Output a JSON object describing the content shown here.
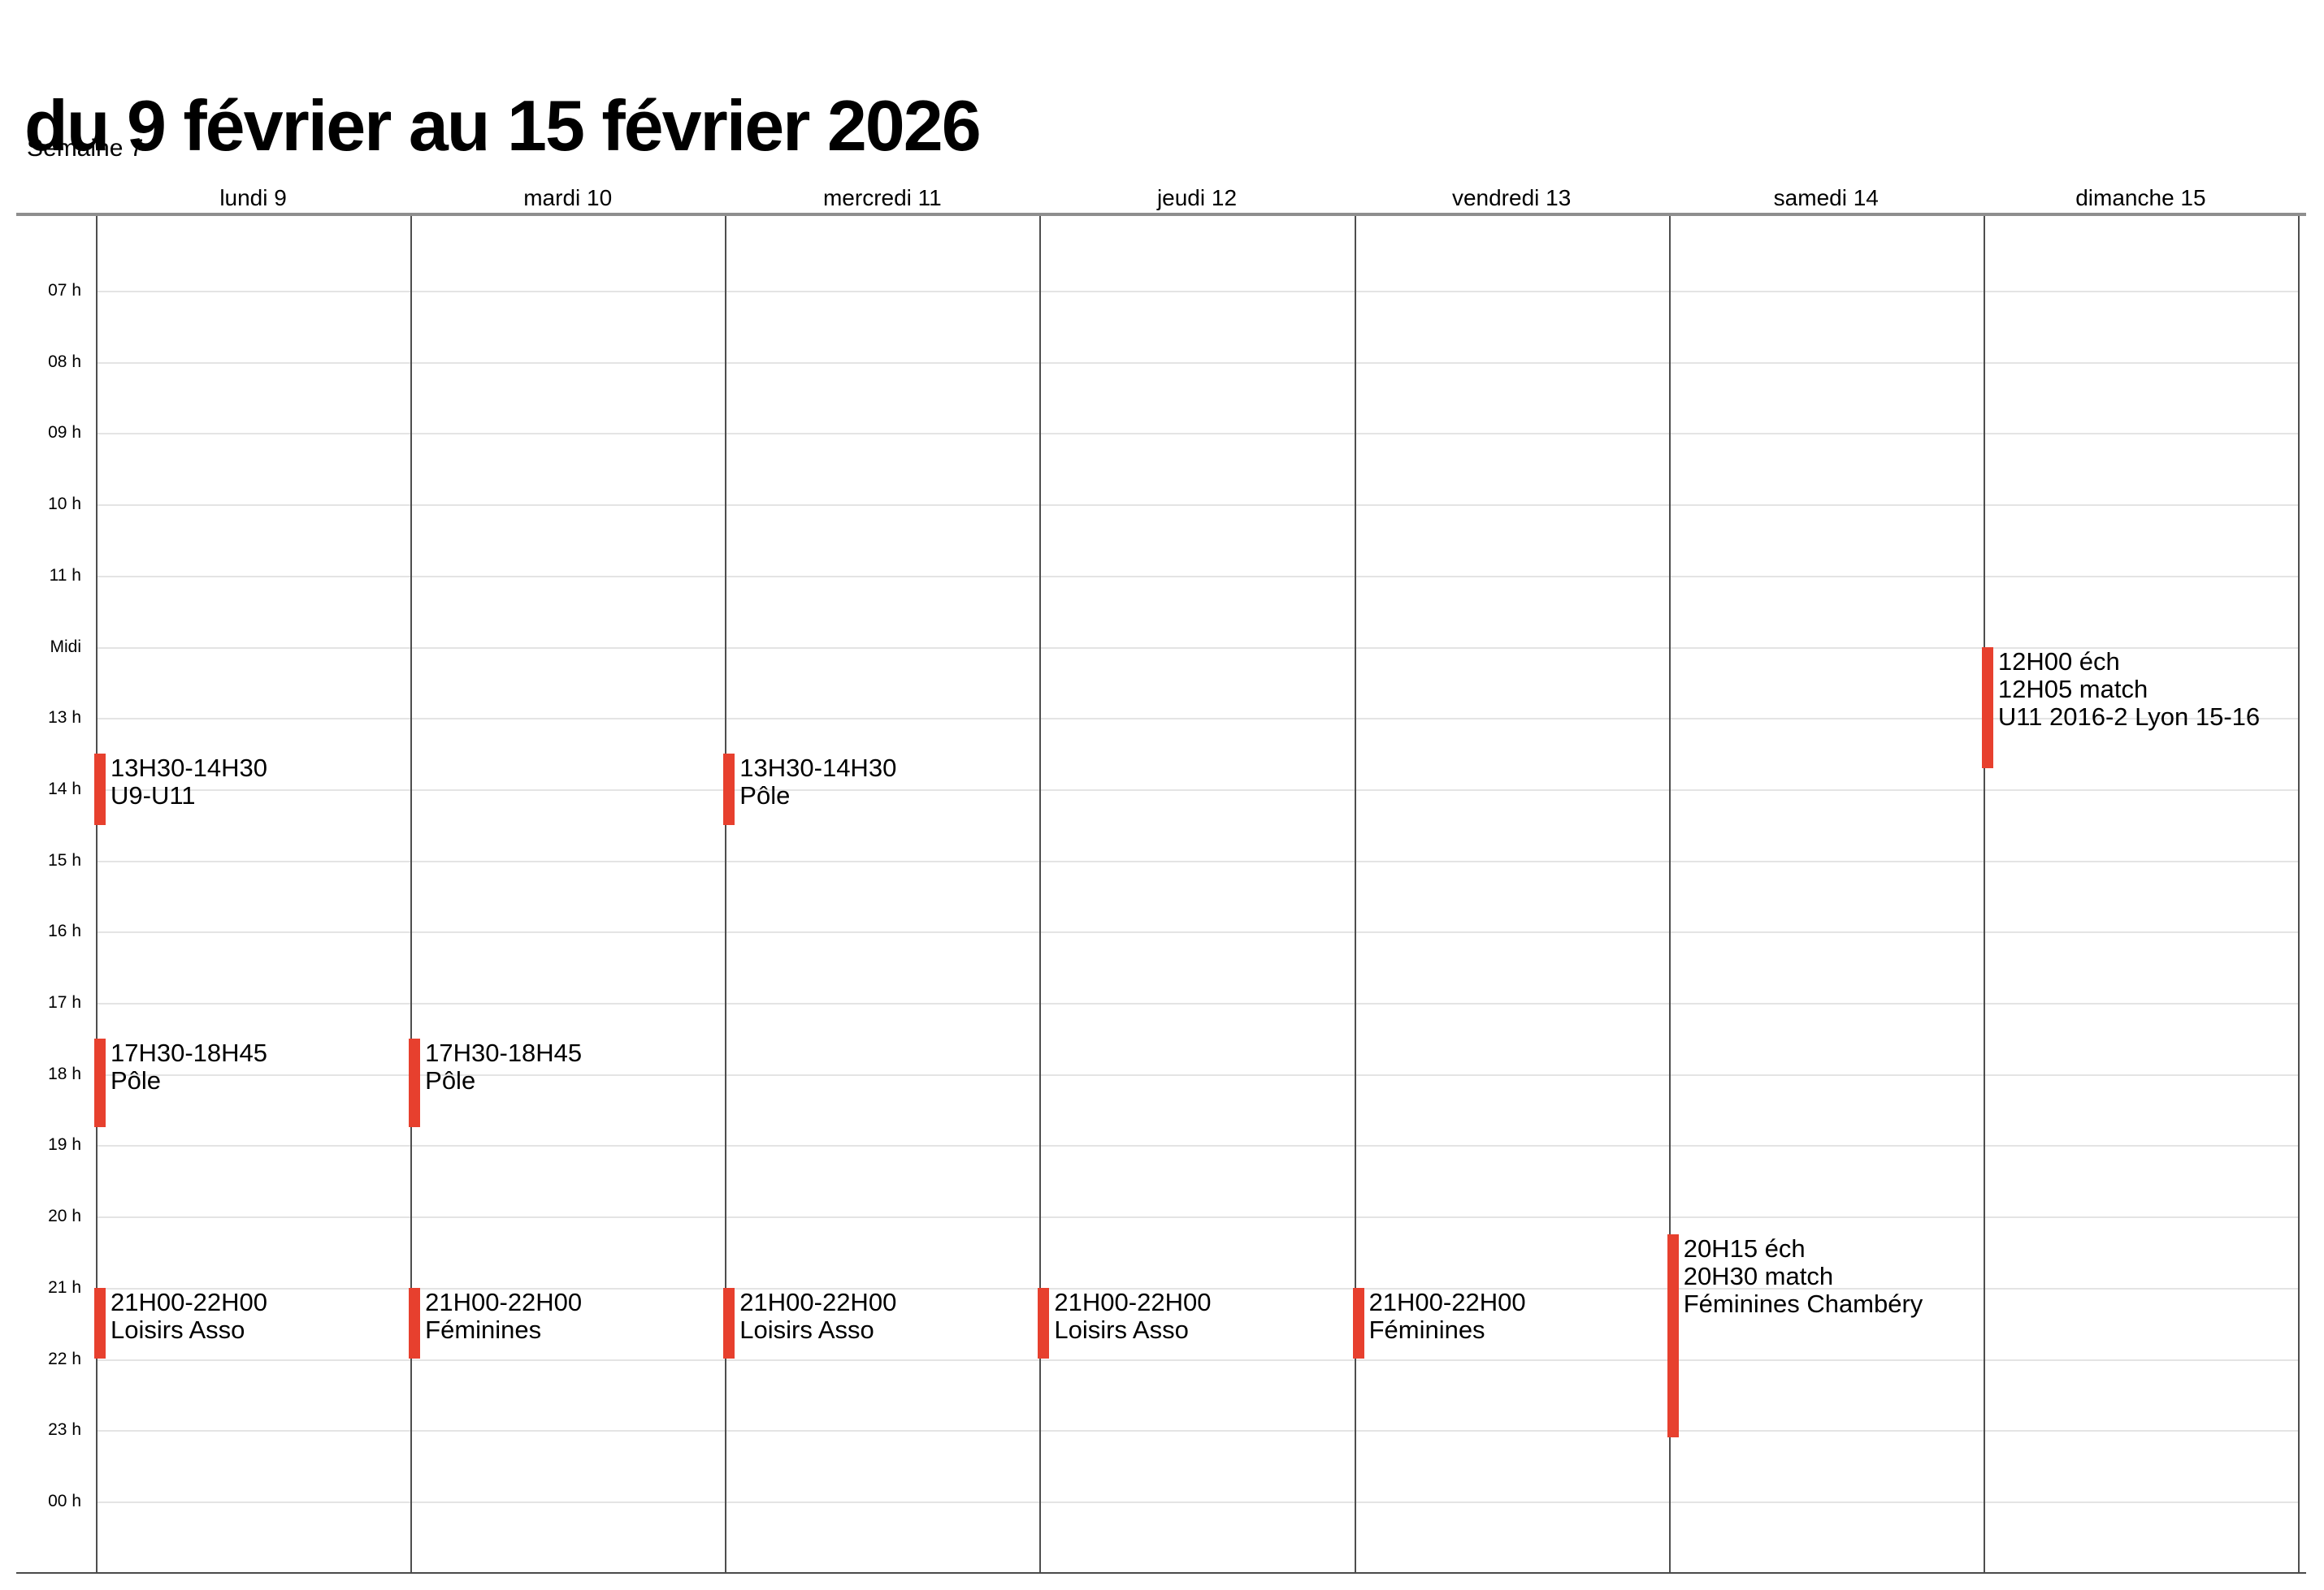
{
  "page": {
    "title": "du 9 février au 15 février 2026",
    "subtitle": "Semaine 7"
  },
  "calendar": {
    "accent_color": "#e7402e",
    "time_labels": [
      "07 h",
      "08 h",
      "09 h",
      "10 h",
      "11 h",
      "Midi",
      "13 h",
      "14 h",
      "15 h",
      "16 h",
      "17 h",
      "18 h",
      "19 h",
      "20 h",
      "21 h",
      "22 h",
      "23 h",
      "00 h"
    ],
    "days": [
      {
        "label": "lundi 9",
        "events": [
          {
            "start": 13.5,
            "end": 14.5,
            "lines": [
              "13H30-14H30",
              "U9-U11"
            ]
          },
          {
            "start": 17.5,
            "end": 18.75,
            "lines": [
              "17H30-18H45",
              "Pôle"
            ]
          },
          {
            "start": 21,
            "end": 22,
            "lines": [
              "21H00-22H00",
              "Loisirs Asso"
            ]
          }
        ]
      },
      {
        "label": "mardi 10",
        "events": [
          {
            "start": 17.5,
            "end": 18.75,
            "lines": [
              "17H30-18H45",
              "Pôle"
            ]
          },
          {
            "start": 21,
            "end": 22,
            "lines": [
              "21H00-22H00",
              "Féminines"
            ]
          }
        ]
      },
      {
        "label": "mercredi 11",
        "events": [
          {
            "start": 13.5,
            "end": 14.5,
            "lines": [
              "13H30-14H30",
              "Pôle"
            ]
          },
          {
            "start": 21,
            "end": 22,
            "lines": [
              "21H00-22H00",
              "Loisirs Asso"
            ]
          }
        ]
      },
      {
        "label": "jeudi 12",
        "events": [
          {
            "start": 21,
            "end": 22,
            "lines": [
              "21H00-22H00",
              "Loisirs Asso"
            ]
          }
        ]
      },
      {
        "label": "vendredi 13",
        "events": [
          {
            "start": 21,
            "end": 22,
            "lines": [
              "21H00-22H00",
              "Féminines"
            ]
          }
        ]
      },
      {
        "label": "samedi 14",
        "events": [
          {
            "start": 20.25,
            "end": 23.1,
            "lines": [
              "20H15 éch",
              "20H30 match",
              "Féminines Chambéry"
            ]
          }
        ]
      },
      {
        "label": "dimanche 15",
        "events": [
          {
            "start": 12,
            "end": 13.7,
            "lines": [
              "12H00 éch",
              "12H05 match",
              "U11 2016-2 Lyon 15-16"
            ]
          }
        ]
      }
    ]
  }
}
